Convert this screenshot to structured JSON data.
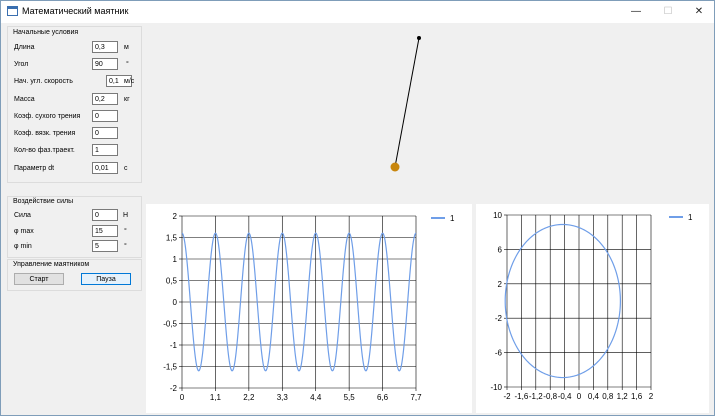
{
  "window": {
    "title": "Математический маятник",
    "min_glyph": "—",
    "max_glyph": "☐",
    "close_glyph": "✕"
  },
  "initial": {
    "title": "Начальные условия",
    "fields": [
      {
        "label": "Длина",
        "value": "0,3",
        "unit": "м"
      },
      {
        "label": "Угол",
        "value": "90",
        "unit": "°"
      },
      {
        "label": "Нач. угл. скорость",
        "value": "0,1",
        "unit": "м/с"
      },
      {
        "label": "Масса",
        "value": "0,2",
        "unit": "кг"
      },
      {
        "label": "Коэф. сухого трения",
        "value": "0",
        "unit": ""
      },
      {
        "label": "Коэф. вязк. трения",
        "value": "0",
        "unit": ""
      },
      {
        "label": "Кол-во фаз.траект.",
        "value": "1",
        "unit": ""
      },
      {
        "label": "Параметр dt",
        "value": "0,01",
        "unit": "с"
      }
    ]
  },
  "force": {
    "title": "Воздействие силы",
    "fields": [
      {
        "label": "Сила",
        "value": "0",
        "unit": "Н"
      },
      {
        "label": "φ max",
        "value": "15",
        "unit": "°"
      },
      {
        "label": "φ min",
        "value": "5",
        "unit": "°"
      }
    ]
  },
  "control": {
    "title": "Управление маятником",
    "start_label": "Старт",
    "pause_label": "Пауза"
  },
  "pendulum": {
    "rod_color": "#000000",
    "bob_color": "#c8860d",
    "pivot_color": "#000000"
  },
  "chart_data": [
    {
      "type": "line",
      "legend": [
        "1"
      ],
      "legend_position": "top-right",
      "grid": true,
      "xlim": [
        0,
        7.7
      ],
      "ylim": [
        -2,
        2
      ],
      "x_ticks": [
        "0",
        "1,1",
        "2,2",
        "3,3",
        "4,4",
        "5,5",
        "6,6",
        "7,7"
      ],
      "y_ticks": [
        "2",
        "1,5",
        "1",
        "0,5",
        "0",
        "-0,5",
        "-1",
        "-1,5",
        "-2"
      ],
      "series": [
        {
          "name": "1",
          "color": "#6f9ee8",
          "amplitude": 1.6,
          "period": 1.1,
          "phase_at_zero": 1.6
        }
      ]
    },
    {
      "type": "line",
      "legend": [
        "1"
      ],
      "legend_position": "top-right",
      "grid": true,
      "xlim": [
        -2,
        2
      ],
      "ylim": [
        -10,
        10
      ],
      "x_ticks": [
        "-2",
        "-1,6",
        "-1,2",
        "-0,8",
        "-0,4",
        "0",
        "0,4",
        "0,8",
        "1,2",
        "1,6",
        "2"
      ],
      "y_ticks": [
        "10",
        "6",
        "2",
        "-2",
        "-6",
        "-10"
      ],
      "series": [
        {
          "name": "1",
          "color": "#6f9ee8",
          "center": [
            -0.45,
            0
          ],
          "radius_x": 1.6,
          "radius_y": 8.9
        }
      ]
    }
  ]
}
